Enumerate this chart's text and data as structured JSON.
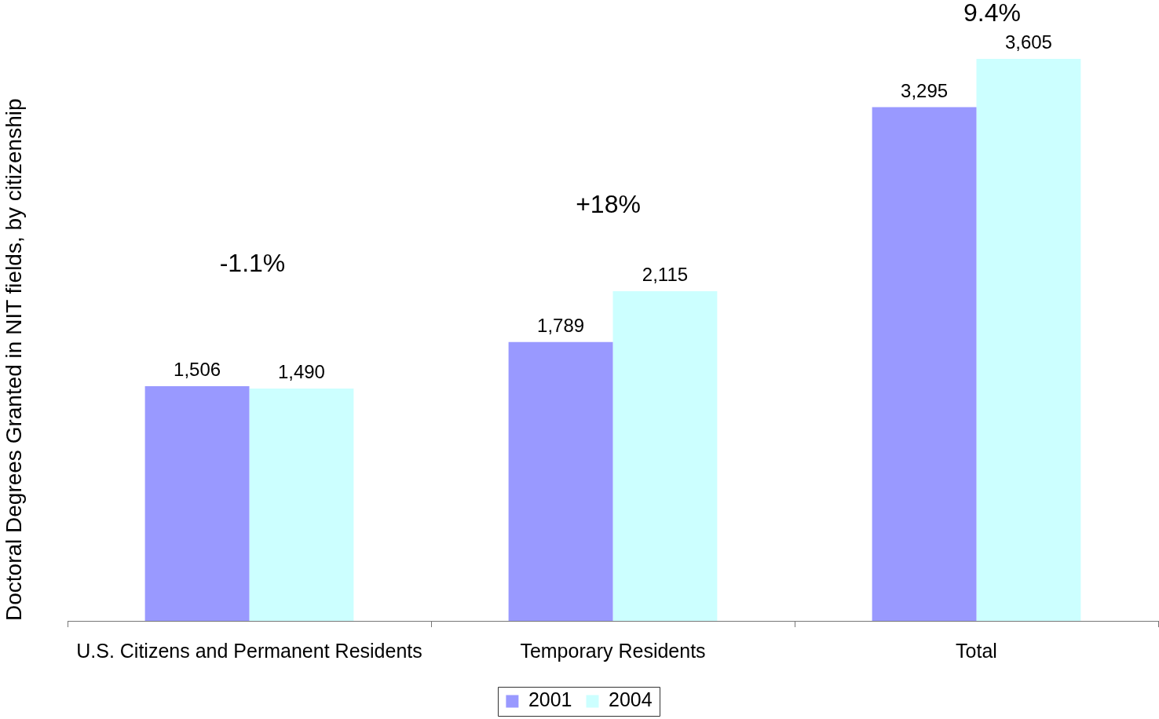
{
  "chart_data": {
    "type": "bar",
    "ylabel": "Doctoral Degrees Granted in NIT fields, by citizenship",
    "categories": [
      "U.S. Citizens and Permanent Residents",
      "Temporary Residents",
      "Total"
    ],
    "series": [
      {
        "name": "2001",
        "color": "#9999ff",
        "values": [
          1506,
          1789,
          3295
        ],
        "value_labels": [
          "1,506",
          "1,789",
          "3,295"
        ]
      },
      {
        "name": "2004",
        "color": "#ccffff",
        "values": [
          1490,
          2115,
          3605
        ],
        "value_labels": [
          "1,490",
          "2,115",
          "3,605"
        ]
      }
    ],
    "legend": "bottom",
    "tick_labels": "x",
    "annotations": [
      "-1.1%",
      "+18%",
      "9.4%"
    ]
  }
}
